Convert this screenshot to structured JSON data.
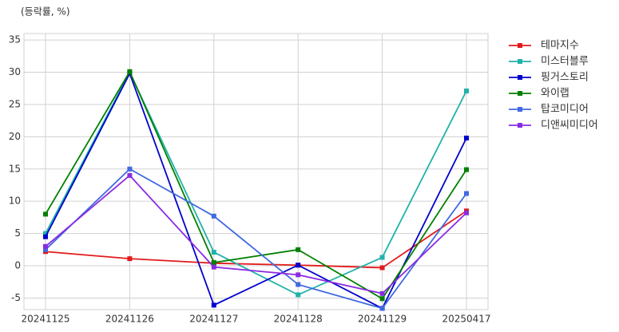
{
  "chart_data": {
    "type": "line",
    "y_label": "(등락률, %)",
    "categories": [
      "20241125",
      "20241126",
      "20241127",
      "20241128",
      "20241129",
      "20250417"
    ],
    "ylim": [
      -6.8,
      36
    ],
    "yticks": [
      -5,
      0,
      5,
      10,
      15,
      20,
      25,
      30,
      35
    ],
    "grid": true,
    "legend": "outside right",
    "series": [
      {
        "name": "테마지수",
        "color": "#e31a1c",
        "values": [
          2.2,
          1.1,
          0.4,
          0.1,
          -0.3,
          8.5
        ]
      },
      {
        "name": "미스터블루",
        "color": "#20b2aa",
        "values": [
          5.0,
          30.0,
          2.1,
          -4.5,
          1.3,
          27.1
        ]
      },
      {
        "name": "핑거스토리",
        "color": "#0000cd",
        "values": [
          4.5,
          29.8,
          -6.1,
          0.1,
          -6.6,
          19.8
        ]
      },
      {
        "name": "와이랩",
        "color": "#008000",
        "values": [
          8.0,
          30.1,
          0.5,
          2.5,
          -5.1,
          14.9
        ]
      },
      {
        "name": "탑코미디어",
        "color": "#4169e1",
        "values": [
          2.5,
          15.0,
          7.7,
          -2.9,
          -6.6,
          11.2
        ]
      },
      {
        "name": "디앤씨미디어",
        "color": "#8a2be2",
        "values": [
          3.0,
          14.0,
          -0.2,
          -1.4,
          -4.3,
          8.2
        ]
      }
    ]
  }
}
